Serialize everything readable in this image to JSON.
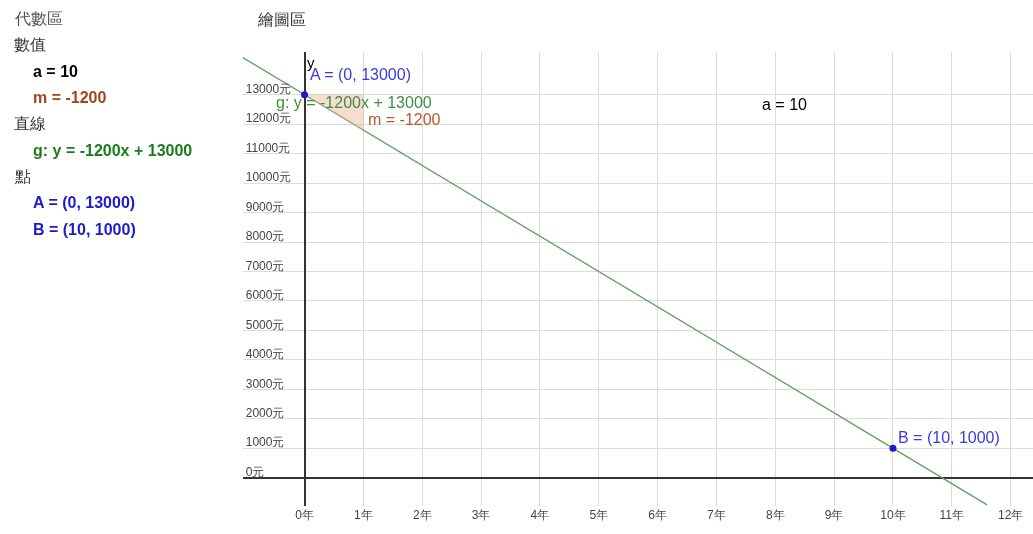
{
  "chart_data": {
    "type": "line",
    "title": "繪圖區",
    "ylabel": "y",
    "series": [
      {
        "color": "#5aa05a",
        "x": [
          -1.05,
          11.6
        ],
        "values": [
          14260,
          -920
        ]
      },
      {
        "type": "area",
        "color": "#e9b49c",
        "x": [
          0,
          1,
          1,
          0
        ],
        "values": [
          13000,
          13000,
          11800,
          13000
        ]
      },
      {
        "type": "scatter",
        "color": "#1c1cc8",
        "x": [
          0
        ],
        "values": [
          13000
        ]
      },
      {
        "type": "scatter",
        "color": "#1c1cc8",
        "x": [
          10
        ],
        "values": [
          1000
        ]
      }
    ],
    "xlim": [
      -1.05,
      12.38
    ],
    "ylim": [
      -960,
      14450
    ],
    "xticks": [
      {
        "value": 0,
        "label": "0年"
      },
      {
        "value": 1,
        "label": "1年"
      },
      {
        "value": 2,
        "label": "2年"
      },
      {
        "value": 3,
        "label": "3年"
      },
      {
        "value": 4,
        "label": "4年"
      },
      {
        "value": 5,
        "label": "5年"
      },
      {
        "value": 6,
        "label": "6年"
      },
      {
        "value": 7,
        "label": "7年"
      },
      {
        "value": 8,
        "label": "8年"
      },
      {
        "value": 9,
        "label": "9年"
      },
      {
        "value": 10,
        "label": "10年"
      },
      {
        "value": 11,
        "label": "11年"
      },
      {
        "value": 12,
        "label": "12年"
      }
    ],
    "yticks": [
      {
        "value": 0,
        "label": "0元"
      },
      {
        "value": 1000,
        "label": "1000元"
      },
      {
        "value": 2000,
        "label": "2000元"
      },
      {
        "value": 3000,
        "label": "3000元"
      },
      {
        "value": 4000,
        "label": "4000元"
      },
      {
        "value": 5000,
        "label": "5000元"
      },
      {
        "value": 6000,
        "label": "6000元"
      },
      {
        "value": 7000,
        "label": "7000元"
      },
      {
        "value": 8000,
        "label": "8000元"
      },
      {
        "value": 9000,
        "label": "9000元"
      },
      {
        "value": 10000,
        "label": "10000元"
      },
      {
        "value": 11000,
        "label": "11000元"
      },
      {
        "value": 12000,
        "label": "12000元"
      },
      {
        "value": 13000,
        "label": "13000元"
      }
    ],
    "grid": true,
    "annotations": [
      "代數區",
      "數值",
      "a = 10",
      "m = -1200",
      "直線",
      "g: y = -1200x + 13000",
      "點",
      "A = (0, 13000)",
      "B = (10, 1000)",
      "g: y = -1200x + 13000",
      "a = 10",
      {
        "text": "A = (0, 13000)",
        "x": 0,
        "y": 13000
      },
      {
        "text": "m = -1200",
        "x": 1,
        "y": 11800
      },
      {
        "text": "B = (10, 1000)",
        "x": 10,
        "y": 1000
      }
    ]
  }
}
